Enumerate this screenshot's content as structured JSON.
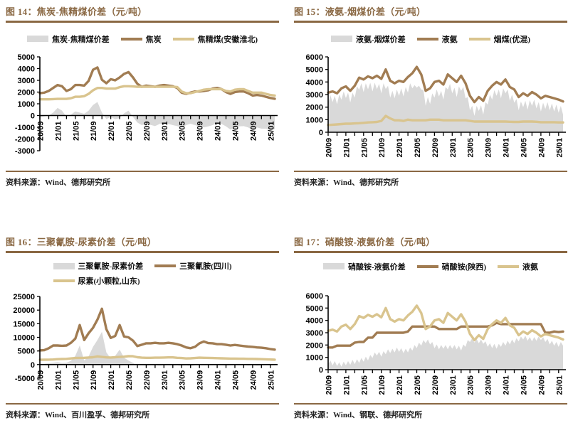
{
  "colors": {
    "accent": "#8A6843",
    "area_gray": "#D9D9D9",
    "line_dark": "#A17C52",
    "line_tan": "#D9C48E",
    "axis": "#000000"
  },
  "chart_data": [
    {
      "id": "fig14",
      "fig_label": "图 14：",
      "title": "焦炭-焦精煤价差（元/吨）",
      "source": "资料来源：Wind、德邦研究所",
      "type": "combo-area-line",
      "ylim": [
        -3000,
        5000
      ],
      "ytick_step": 1000,
      "grid": false,
      "legend_position": "top",
      "n_months": 54,
      "tick_every": 4,
      "x_ticks": [
        "20/09",
        "21/01",
        "21/05",
        "21/09",
        "22/01",
        "22/05",
        "22/09",
        "23/01",
        "23/05",
        "23/09",
        "24/01",
        "24/05",
        "24/09",
        "25/01"
      ],
      "series": [
        {
          "name": "焦炭-焦精煤价差",
          "type": "area",
          "color": "#D9D9D9",
          "values": [
            -150,
            -80,
            0,
            250,
            650,
            420,
            -100,
            80,
            350,
            250,
            150,
            420,
            900,
            1150,
            250,
            -300,
            -120,
            -320,
            -220,
            180,
            420,
            -120,
            -600,
            -820,
            -700,
            -800,
            -900,
            -720,
            -600,
            -720,
            -820,
            -900,
            -1020,
            -820,
            -700,
            -820,
            -920,
            -1020,
            -920,
            -820,
            -620,
            -720,
            -920,
            -1200,
            -1020,
            -920,
            -900,
            -1020,
            -1220,
            -1020,
            -1120,
            -1120,
            -1220,
            -1150
          ]
        },
        {
          "name": "焦炭",
          "type": "line",
          "color": "#A17C52",
          "width": 3.4,
          "values": [
            1900,
            1950,
            2100,
            2350,
            2600,
            2500,
            2100,
            2250,
            2600,
            2600,
            2550,
            2950,
            3900,
            4100,
            3050,
            2750,
            3100,
            3000,
            3250,
            3550,
            3700,
            3250,
            2700,
            2450,
            2550,
            2500,
            2450,
            2550,
            2600,
            2550,
            2500,
            2350,
            1950,
            1850,
            1950,
            2050,
            2050,
            2100,
            2150,
            2300,
            2350,
            2250,
            2000,
            1850,
            2000,
            2050,
            2050,
            1900,
            1700,
            1750,
            1700,
            1600,
            1500,
            1430
          ]
        },
        {
          "name": "焦精煤(安徽淮北)",
          "type": "line",
          "color": "#D9C48E",
          "width": 3.4,
          "values": [
            1380,
            1380,
            1380,
            1400,
            1420,
            1420,
            1420,
            1470,
            1600,
            1600,
            1650,
            1850,
            2150,
            2350,
            2350,
            2300,
            2300,
            2300,
            2420,
            2500,
            2500,
            2480,
            2450,
            2450,
            2450,
            2450,
            2450,
            2450,
            2450,
            2450,
            2450,
            2430,
            2050,
            1900,
            1900,
            2000,
            2100,
            2200,
            2250,
            2250,
            2250,
            2250,
            2100,
            2050,
            2200,
            2250,
            2250,
            2100,
            1950,
            1950,
            1950,
            1850,
            1750,
            1700
          ]
        }
      ]
    },
    {
      "id": "fig15",
      "fig_label": "图 15：",
      "title": "液氨-烟煤价差（元/吨）",
      "source": "资料来源：Wind、德邦研究所",
      "type": "combo-area-line",
      "ylim": [
        0,
        6000
      ],
      "ytick_step": 1000,
      "grid": false,
      "legend_position": "top",
      "n_months": 54,
      "tick_every": 4,
      "x_ticks": [
        "20/09",
        "21/01",
        "21/05",
        "21/09",
        "22/01",
        "22/05",
        "22/09",
        "23/01",
        "23/05",
        "23/09",
        "24/01",
        "24/05",
        "24/09",
        "25/01"
      ],
      "series": [
        {
          "name": "液氨-烟煤价差",
          "type": "area",
          "color": "#D9D9D9",
          "values": [
            2320,
            2960,
            2400,
            2900,
            2230,
            3000,
            2600,
            3250,
            2720,
            3150,
            2370,
            3150,
            2750,
            3650,
            3380,
            3900,
            3200,
            3900,
            3420,
            3950,
            3250,
            3950,
            3430,
            3850,
            3100,
            3900,
            3450,
            3700,
            2750,
            3300,
            2700,
            3400,
            2900,
            3500,
            2850,
            3600,
            3150,
            3900,
            3500,
            3750,
            3550,
            3700,
            3400,
            3350,
            2100,
            2800,
            2250,
            3100,
            2750,
            3400,
            2850,
            3300,
            2600,
            3600,
            3400,
            3850,
            3100,
            3550,
            2800,
            3650,
            3300,
            3600,
            2700,
            2800,
            1750,
            2100,
            1300,
            2100,
            1700,
            2150,
            1400,
            2400,
            2200,
            3000,
            2600,
            3350,
            2900,
            3400,
            2700,
            3500,
            3100,
            3400,
            2500,
            3000,
            2350,
            2650,
            1750,
            2450,
            2000,
            2500,
            1800,
            2550,
            2100,
            2600,
            1900,
            2400,
            1650,
            2350,
            1850,
            2400,
            1750,
            2300,
            1650,
            2200,
            1550,
            2100,
            1400
          ]
        },
        {
          "name": "液氨",
          "type": "line",
          "color": "#A17C52",
          "width": 3.4,
          "values": [
            3150,
            3250,
            3100,
            3500,
            3650,
            3300,
            3700,
            4350,
            4200,
            4450,
            4300,
            4500,
            4250,
            5000,
            4100,
            3900,
            4100,
            4000,
            4400,
            4700,
            5200,
            4600,
            3300,
            3500,
            4000,
            4100,
            3800,
            4600,
            4300,
            4000,
            4500,
            3900,
            2900,
            2400,
            2800,
            2500,
            3300,
            3700,
            4000,
            3800,
            4200,
            3600,
            3400,
            2800,
            3100,
            2900,
            3200,
            3000,
            2700,
            2900,
            2800,
            2700,
            2600,
            2450
          ]
        },
        {
          "name": "烟煤(优混)",
          "type": "line",
          "color": "#D9C48E",
          "width": 3.4,
          "values": [
            580,
            600,
            620,
            650,
            680,
            680,
            700,
            720,
            750,
            780,
            800,
            820,
            900,
            1300,
            1100,
            950,
            950,
            900,
            1000,
            950,
            950,
            950,
            950,
            1000,
            1000,
            1000,
            950,
            950,
            950,
            950,
            950,
            950,
            900,
            850,
            850,
            850,
            850,
            850,
            850,
            850,
            850,
            830,
            820,
            820,
            850,
            850,
            850,
            830,
            800,
            800,
            800,
            800,
            780,
            780
          ]
        }
      ]
    },
    {
      "id": "fig16",
      "fig_label": "图 16：",
      "title": "三聚氰胺-尿素价差（元/吨）",
      "source": "资料来源：Wind、百川盈孚、德邦研究所",
      "type": "combo-area-line",
      "ylim": [
        -5000,
        25000
      ],
      "ytick_step": 5000,
      "grid": false,
      "legend_position": "top",
      "n_months": 54,
      "tick_every": 4,
      "x_ticks": [
        "20/09",
        "21/01",
        "21/05",
        "21/09",
        "22/01",
        "22/05",
        "22/09",
        "23/01",
        "23/05",
        "23/09",
        "24/01",
        "24/05",
        "24/09",
        "25/01"
      ],
      "series": [
        {
          "name": "三聚氰胺-尿素价差",
          "type": "area",
          "color": "#D9D9D9",
          "values": [
            300,
            350,
            500,
            700,
            900,
            600,
            700,
            1400,
            3200,
            7000,
            1500,
            3000,
            6500,
            9000,
            12000,
            4500,
            2200,
            3200,
            5500,
            2500,
            1500,
            600,
            -200,
            -300,
            -400,
            -250,
            -300,
            -400,
            -300,
            -250,
            -400,
            -300,
            -500,
            -400,
            -600,
            -300,
            -250,
            -300,
            -250,
            -300,
            -250,
            -300,
            -400,
            -300,
            -250,
            -300,
            -250,
            -400,
            -300,
            -500,
            -350,
            -250,
            -300,
            -280
          ]
        },
        {
          "name": "三聚氰胺(四川)",
          "type": "line",
          "color": "#A17C52",
          "width": 3.4,
          "values": [
            5200,
            5300,
            6000,
            7000,
            7000,
            6900,
            7000,
            8000,
            9500,
            14500,
            9000,
            11500,
            13500,
            16500,
            20500,
            13000,
            9800,
            10500,
            14500,
            10300,
            10000,
            8800,
            6800,
            7300,
            7800,
            7800,
            8000,
            7800,
            7800,
            8000,
            7800,
            7500,
            7000,
            6300,
            6000,
            6500,
            7800,
            8500,
            7900,
            7800,
            7500,
            7500,
            7300,
            7000,
            7200,
            7000,
            6800,
            6600,
            6500,
            6300,
            6200,
            6000,
            5700,
            5500
          ]
        },
        {
          "name": "尿素(小颗粒,山东)",
          "type": "line",
          "color": "#D9C48E",
          "width": 3.4,
          "values": [
            1750,
            1780,
            1800,
            1850,
            2000,
            2050,
            2100,
            2250,
            2400,
            2450,
            2500,
            2600,
            2700,
            3000,
            2800,
            2650,
            2600,
            2700,
            2800,
            2900,
            3100,
            3050,
            2700,
            2550,
            2500,
            2500,
            2550,
            2550,
            2600,
            2650,
            2650,
            2500,
            2400,
            2250,
            2300,
            2400,
            2550,
            2500,
            2450,
            2400,
            2350,
            2300,
            2250,
            2200,
            2200,
            2150,
            2150,
            2100,
            2100,
            2050,
            2000,
            1950,
            1850,
            1800
          ]
        }
      ]
    },
    {
      "id": "fig17",
      "fig_label": "图 17：",
      "title": "硝酸铵-液氨价差（元/吨）",
      "source": "资料来源：Wind、钢联、德邦研究所",
      "type": "combo-area-line",
      "ylim": [
        0,
        6000
      ],
      "ytick_step": 1000,
      "grid": false,
      "legend_position": "top",
      "n_months": 54,
      "tick_every": 4,
      "x_ticks": [
        "20/09",
        "21/01",
        "21/05",
        "21/09",
        "22/01",
        "22/05",
        "22/09",
        "23/01",
        "23/05",
        "23/09",
        "24/01",
        "24/05",
        "24/09",
        "25/01"
      ],
      "series": [
        {
          "name": "硝酸铵-液氨价差",
          "type": "area",
          "color": "#D9D9D9",
          "values": [
            450,
            750,
            350,
            700,
            300,
            600,
            250,
            650,
            350,
            700,
            400,
            800,
            450,
            850,
            550,
            950,
            650,
            1050,
            750,
            1200,
            950,
            1400,
            1150,
            1450,
            1050,
            1500,
            1250,
            1650,
            1350,
            1700,
            1400,
            1800,
            1450,
            1750,
            1350,
            1700,
            1400,
            1800,
            1550,
            2000,
            1750,
            2200,
            1950,
            2400,
            2150,
            2450,
            2050,
            2250,
            1750,
            2050,
            1650,
            2000,
            1700,
            2000,
            1650,
            2000,
            1700,
            2000,
            1650,
            1950,
            1550,
            2050,
            1850,
            2400,
            2250,
            2550,
            2200,
            2500,
            2150,
            2450,
            2100,
            2300,
            1850,
            2150,
            1750,
            2100,
            1700,
            2100,
            1850,
            2250,
            1950,
            2350,
            2050,
            2450,
            2150,
            2550,
            2300,
            2700,
            2450,
            2750,
            2350,
            2650,
            2300,
            2650,
            2350,
            2700,
            2400,
            2650,
            2250,
            2500,
            2050,
            2350,
            1950,
            2250,
            1850,
            2250,
            1950
          ]
        },
        {
          "name": "硝酸铵(陕西)",
          "type": "line",
          "color": "#A17C52",
          "width": 3.4,
          "values": [
            1800,
            1800,
            1950,
            1950,
            1950,
            1950,
            2200,
            2250,
            2250,
            2600,
            2600,
            3000,
            3000,
            3000,
            3000,
            3000,
            3000,
            3000,
            3100,
            3500,
            3500,
            3500,
            3500,
            3500,
            3500,
            3300,
            3300,
            3300,
            3300,
            3300,
            3500,
            3500,
            3500,
            3500,
            3500,
            3500,
            3500,
            3600,
            3800,
            3700,
            3700,
            3700,
            3700,
            3700,
            3700,
            3700,
            3700,
            3700,
            3700,
            3000,
            3000,
            3100,
            3050,
            3100
          ]
        },
        {
          "name": "液氨",
          "type": "line",
          "color": "#D9C48E",
          "width": 3.4,
          "values": [
            3150,
            3250,
            3100,
            3500,
            3650,
            3300,
            3700,
            4350,
            4200,
            4450,
            4300,
            4500,
            4250,
            5000,
            4100,
            3900,
            4100,
            4000,
            4400,
            4700,
            5200,
            4600,
            3300,
            3500,
            4000,
            4100,
            3800,
            4600,
            4300,
            4000,
            4500,
            3900,
            2900,
            2400,
            2800,
            2500,
            3300,
            3700,
            4000,
            3800,
            4200,
            3600,
            3400,
            2800,
            3100,
            2900,
            3200,
            3000,
            2700,
            2900,
            2800,
            2700,
            2600,
            2450
          ]
        }
      ]
    }
  ]
}
